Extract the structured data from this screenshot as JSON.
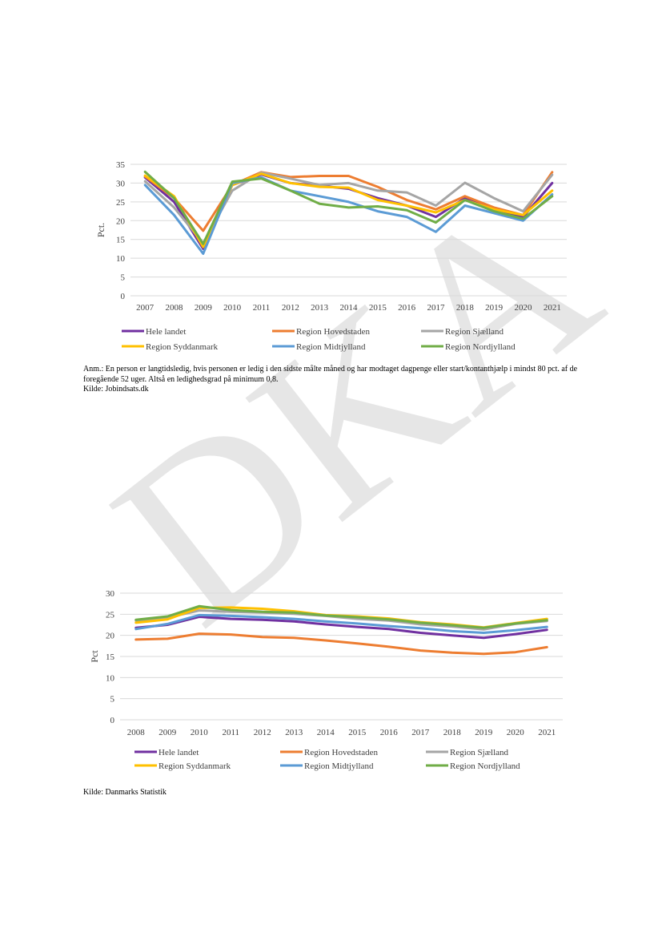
{
  "colors": {
    "hele_landet": "#7030a0",
    "hovedstaden": "#ed7d31",
    "sjaelland": "#a5a5a5",
    "syddanmark": "#ffc000",
    "midtjylland": "#5b9bd5",
    "nordjylland": "#70ad47",
    "grid": "#d9d9d9",
    "watermark": "#e6e6e6"
  },
  "watermark": {
    "text": "DKA",
    "icon": "watermark-text"
  },
  "notes": {
    "chart1_note": "Anm.: En person er langtidsledig, hvis personen er ledig i den sidste målte måned og har modtaget dagpenge eller start/kontanthjælp i mindst 80 pct. af de foregående 52 uger. Altså en ledighedsgrad på minimum 0,8.",
    "chart1_source": "Kilde: Jobindsats.dk",
    "chart2_source": "Kilde: Danmarks Statistik"
  },
  "chart_data": [
    {
      "type": "line",
      "title": "",
      "xlabel": "",
      "ylabel": "Pct.",
      "ylim": [
        0,
        35
      ],
      "yticks": [
        "0",
        "5",
        "10",
        "15",
        "20",
        "25",
        "30",
        "35"
      ],
      "grid": true,
      "legend": "bottom",
      "categories": [
        "2007",
        "2008",
        "2009",
        "2010",
        "2011",
        "2012",
        "2013",
        "2014",
        "2015",
        "2016",
        "2017",
        "2018",
        "2019",
        "2020",
        "2021"
      ],
      "series": [
        {
          "name": "Hele landet",
          "color_key": "hele_landet",
          "values": [
            31.5,
            25.0,
            12.5,
            29.5,
            32.3,
            30.0,
            29.3,
            28.5,
            26.0,
            24.0,
            21.0,
            26.0,
            23.0,
            21.0,
            30.0
          ]
        },
        {
          "name": "Region Hovedstaden",
          "color_key": "hovedstaden",
          "values": [
            31.8,
            26.0,
            17.3,
            29.5,
            32.9,
            31.6,
            31.9,
            31.9,
            29.0,
            25.5,
            23.0,
            26.5,
            23.5,
            21.5,
            32.9
          ]
        },
        {
          "name": "Region Sjælland",
          "color_key": "sjaelland",
          "values": [
            30.5,
            23.5,
            14.0,
            28.0,
            32.8,
            31.2,
            29.5,
            30.0,
            28.0,
            27.5,
            24.0,
            30.1,
            26.0,
            22.5,
            32.2
          ]
        },
        {
          "name": "Region Syddanmark",
          "color_key": "syddanmark",
          "values": [
            32.0,
            26.5,
            13.0,
            29.5,
            32.5,
            30.0,
            29.0,
            28.8,
            25.5,
            24.0,
            22.2,
            25.5,
            23.0,
            21.5,
            28.0
          ]
        },
        {
          "name": "Region Midtjylland",
          "color_key": "midtjylland",
          "values": [
            29.5,
            21.5,
            11.2,
            30.0,
            31.5,
            28.0,
            26.5,
            25.0,
            22.5,
            21.0,
            17.0,
            24.0,
            22.0,
            20.0,
            27.0
          ]
        },
        {
          "name": "Region Nordjylland",
          "color_key": "nordjylland",
          "values": [
            33.0,
            26.0,
            13.8,
            30.4,
            31.2,
            28.0,
            24.5,
            23.5,
            23.8,
            22.8,
            19.5,
            25.5,
            22.5,
            20.5,
            26.5
          ]
        }
      ]
    },
    {
      "type": "line",
      "title": "",
      "xlabel": "",
      "ylabel": "Pct",
      "ylim": [
        0,
        30
      ],
      "yticks": [
        "0",
        "5",
        "10",
        "15",
        "20",
        "25",
        "30"
      ],
      "grid": true,
      "legend": "bottom",
      "categories": [
        "2008",
        "2009",
        "2010",
        "2011",
        "2012",
        "2013",
        "2014",
        "2015",
        "2016",
        "2017",
        "2018",
        "2019",
        "2020",
        "2021"
      ],
      "series": [
        {
          "name": "Hele landet",
          "color_key": "hele_landet",
          "values": [
            21.8,
            22.5,
            24.4,
            23.9,
            23.7,
            23.3,
            22.6,
            22.0,
            21.5,
            20.6,
            20.0,
            19.4,
            20.3,
            21.3
          ]
        },
        {
          "name": "Region Hovedstaden",
          "color_key": "hovedstaden",
          "values": [
            19.0,
            19.2,
            20.4,
            20.2,
            19.6,
            19.4,
            18.8,
            18.1,
            17.3,
            16.4,
            15.9,
            15.6,
            16.0,
            17.2
          ]
        },
        {
          "name": "Region Sjælland",
          "color_key": "sjaelland",
          "values": [
            23.5,
            24.2,
            25.9,
            25.6,
            25.4,
            25.1,
            24.6,
            23.9,
            23.5,
            22.6,
            22.1,
            21.4,
            22.7,
            23.4
          ]
        },
        {
          "name": "Region Syddanmark",
          "color_key": "syddanmark",
          "values": [
            23.0,
            23.8,
            26.5,
            26.6,
            26.3,
            25.7,
            24.8,
            24.5,
            24.0,
            23.1,
            22.6,
            21.9,
            22.9,
            23.9
          ]
        },
        {
          "name": "Region Midtjylland",
          "color_key": "midtjylland",
          "values": [
            21.5,
            22.7,
            24.8,
            24.6,
            24.3,
            23.9,
            23.3,
            22.8,
            22.2,
            21.7,
            21.0,
            20.6,
            21.2,
            22.0
          ]
        },
        {
          "name": "Region Nordjylland",
          "color_key": "nordjylland",
          "values": [
            23.7,
            24.5,
            26.9,
            26.0,
            25.6,
            25.4,
            24.7,
            24.3,
            23.8,
            23.0,
            22.4,
            21.8,
            22.8,
            23.6
          ]
        }
      ]
    }
  ]
}
